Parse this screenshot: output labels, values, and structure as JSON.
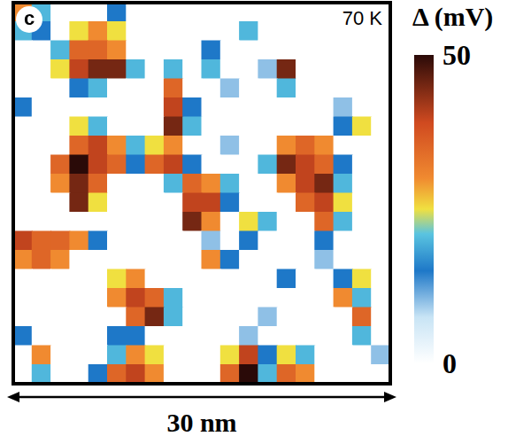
{
  "chart_data": {
    "type": "heatmap",
    "panel_label": "c",
    "annotation": "70 K",
    "scale_bar_label": "30 nm",
    "x": [
      0.75,
      2.25,
      3.75,
      5.25,
      6.75,
      8.25,
      9.75,
      11.25,
      12.75,
      14.25,
      15.75,
      17.25,
      18.75,
      20.25,
      21.75,
      23.25,
      24.75,
      26.25,
      27.75,
      29.25
    ],
    "y": [
      0.75,
      2.25,
      3.75,
      5.25,
      6.75,
      8.25,
      9.75,
      11.25,
      12.75,
      14.25,
      15.75,
      17.25,
      18.75,
      20.25,
      21.75,
      23.25,
      24.75,
      26.25,
      27.75,
      29.25
    ],
    "xlim": [
      0,
      30
    ],
    "ylim": [
      0,
      30
    ],
    "tick_labels": false,
    "cells": [
      [
        30,
        20,
        0,
        0,
        0,
        15,
        0,
        0,
        0,
        0,
        0,
        0,
        0,
        0,
        0,
        0,
        0,
        0,
        0,
        0
      ],
      [
        20,
        15,
        0,
        25,
        30,
        25,
        0,
        0,
        0,
        0,
        0,
        0,
        20,
        0,
        0,
        0,
        0,
        0,
        0,
        0
      ],
      [
        0,
        0,
        20,
        35,
        35,
        30,
        0,
        0,
        0,
        0,
        15,
        0,
        0,
        0,
        0,
        0,
        0,
        0,
        0,
        0
      ],
      [
        0,
        0,
        25,
        40,
        45,
        45,
        20,
        0,
        20,
        0,
        20,
        0,
        0,
        10,
        45,
        0,
        0,
        0,
        0,
        0
      ],
      [
        0,
        0,
        0,
        15,
        20,
        0,
        0,
        0,
        35,
        0,
        0,
        10,
        0,
        0,
        20,
        0,
        0,
        0,
        0,
        0
      ],
      [
        15,
        0,
        0,
        0,
        0,
        0,
        0,
        0,
        40,
        15,
        0,
        0,
        0,
        0,
        0,
        0,
        0,
        10,
        0,
        0
      ],
      [
        0,
        0,
        0,
        25,
        20,
        0,
        0,
        0,
        45,
        20,
        0,
        0,
        0,
        0,
        0,
        0,
        0,
        15,
        25,
        0
      ],
      [
        0,
        0,
        0,
        35,
        40,
        30,
        20,
        25,
        30,
        0,
        0,
        10,
        0,
        0,
        30,
        35,
        30,
        0,
        0,
        0
      ],
      [
        0,
        0,
        35,
        50,
        40,
        35,
        15,
        35,
        40,
        15,
        0,
        0,
        0,
        20,
        45,
        40,
        35,
        15,
        0,
        0
      ],
      [
        0,
        0,
        30,
        45,
        35,
        0,
        0,
        0,
        20,
        35,
        30,
        20,
        0,
        0,
        30,
        40,
        45,
        20,
        0,
        0
      ],
      [
        0,
        0,
        0,
        45,
        25,
        0,
        0,
        0,
        0,
        40,
        40,
        15,
        0,
        0,
        0,
        35,
        40,
        25,
        0,
        0
      ],
      [
        0,
        0,
        0,
        0,
        0,
        0,
        0,
        0,
        0,
        45,
        30,
        0,
        25,
        20,
        0,
        0,
        35,
        20,
        0,
        0
      ],
      [
        40,
        35,
        35,
        30,
        15,
        0,
        0,
        0,
        0,
        0,
        10,
        0,
        15,
        0,
        0,
        0,
        15,
        0,
        0,
        0
      ],
      [
        30,
        35,
        30,
        0,
        0,
        0,
        0,
        0,
        0,
        0,
        30,
        15,
        0,
        0,
        0,
        0,
        10,
        0,
        0,
        0
      ],
      [
        0,
        0,
        0,
        0,
        0,
        25,
        30,
        0,
        0,
        0,
        0,
        0,
        0,
        0,
        15,
        0,
        0,
        15,
        25,
        0
      ],
      [
        0,
        0,
        0,
        0,
        0,
        30,
        40,
        35,
        20,
        0,
        0,
        0,
        0,
        0,
        0,
        0,
        0,
        30,
        20,
        0
      ],
      [
        0,
        0,
        0,
        0,
        0,
        0,
        35,
        45,
        20,
        0,
        0,
        0,
        0,
        10,
        0,
        0,
        0,
        0,
        35,
        0
      ],
      [
        15,
        0,
        0,
        0,
        0,
        15,
        15,
        0,
        0,
        0,
        0,
        0,
        10,
        0,
        0,
        0,
        0,
        0,
        20,
        0
      ],
      [
        0,
        30,
        0,
        0,
        0,
        20,
        30,
        25,
        0,
        0,
        0,
        25,
        40,
        15,
        25,
        20,
        0,
        0,
        0,
        10
      ],
      [
        0,
        20,
        0,
        0,
        15,
        35,
        40,
        30,
        0,
        0,
        0,
        35,
        50,
        20,
        35,
        30,
        0,
        0,
        0,
        0
      ]
    ],
    "colorbar": {
      "title": "Δ (mV)",
      "range": [
        0,
        50
      ],
      "ticks": [
        0,
        50
      ]
    }
  }
}
